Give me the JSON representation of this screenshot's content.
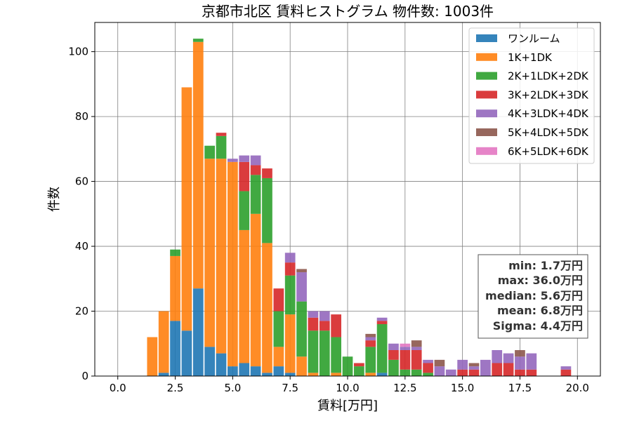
{
  "chart_data": {
    "type": "bar",
    "stacked": true,
    "title": "京都市北区 賃料ヒストグラム 物件数: 1003件",
    "xlabel": "賃料[万円]",
    "ylabel": "件数",
    "xlim": [
      -1.0,
      21.0
    ],
    "ylim": [
      0,
      109
    ],
    "xticks": [
      0.0,
      2.5,
      5.0,
      7.5,
      10.0,
      12.5,
      15.0,
      17.5,
      20.0
    ],
    "xtick_labels": [
      "0.0",
      "2.5",
      "5.0",
      "7.5",
      "10.0",
      "12.5",
      "15.0",
      "17.5",
      "20.0"
    ],
    "yticks": [
      0,
      20,
      40,
      60,
      80,
      100
    ],
    "ytick_labels": [
      "0",
      "20",
      "40",
      "60",
      "80",
      "100"
    ],
    "grid": true,
    "legend_position": "top-right",
    "bin_width": 0.5,
    "x": [
      1.5,
      2.0,
      2.5,
      3.0,
      3.5,
      4.0,
      4.5,
      5.0,
      5.5,
      6.0,
      6.5,
      7.0,
      7.5,
      8.0,
      8.5,
      9.0,
      9.5,
      10.0,
      10.5,
      11.0,
      11.5,
      12.0,
      12.5,
      13.0,
      13.5,
      14.0,
      14.5,
      15.0,
      15.5,
      16.0,
      16.5,
      17.0,
      17.5,
      18.0,
      19.5
    ],
    "series": [
      {
        "name": "ワンルーム",
        "color": "#1f77b4",
        "values": [
          0,
          1,
          17,
          14,
          27,
          9,
          7,
          3,
          4,
          3,
          1,
          3,
          1,
          0,
          0,
          0,
          0,
          0,
          0,
          0,
          1,
          0,
          0,
          0,
          0,
          0,
          0,
          0,
          0,
          0,
          0,
          0,
          0,
          0,
          0
        ]
      },
      {
        "name": "1K+1DK",
        "color": "#ff7f0e",
        "values": [
          12,
          19,
          20,
          75,
          76,
          58,
          60,
          63,
          41,
          47,
          40,
          6,
          18,
          6,
          1,
          0,
          1,
          0,
          0,
          1,
          0,
          0,
          0,
          0,
          0,
          0,
          0,
          0,
          0,
          0,
          0,
          0,
          0,
          0,
          0
        ]
      },
      {
        "name": "2K+1LDK+2DK",
        "color": "#2ca02c",
        "values": [
          0,
          0,
          2,
          0,
          1,
          4,
          7,
          0,
          12,
          12,
          20,
          11,
          12,
          17,
          13,
          14,
          11,
          6,
          3,
          8,
          15,
          5,
          2,
          2,
          1,
          0,
          0,
          0,
          0,
          0,
          0,
          0,
          0,
          0,
          0
        ]
      },
      {
        "name": "3K+2LDK+3DK",
        "color": "#d62728",
        "values": [
          0,
          0,
          0,
          0,
          0,
          0,
          1,
          0,
          9,
          3,
          3,
          7,
          4,
          0,
          4,
          3,
          7,
          0,
          1,
          2,
          1,
          3,
          6,
          6,
          3,
          0,
          0,
          2,
          2,
          0,
          4,
          4,
          2,
          2,
          2
        ]
      },
      {
        "name": "4K+3LDK+4DK",
        "color": "#9467bd",
        "values": [
          0,
          0,
          0,
          0,
          0,
          0,
          0,
          1,
          2,
          3,
          0,
          0,
          3,
          9,
          2,
          3,
          0,
          0,
          0,
          1,
          1,
          2,
          1,
          1,
          1,
          3,
          2,
          3,
          1,
          5,
          4,
          3,
          4,
          5,
          1
        ]
      },
      {
        "name": "5K+4LDK+5DK",
        "color": "#8c564b",
        "values": [
          0,
          0,
          0,
          0,
          0,
          0,
          0,
          0,
          0,
          0,
          0,
          0,
          0,
          1,
          0,
          0,
          0,
          0,
          0,
          1,
          0,
          0,
          0,
          2,
          0,
          2,
          0,
          0,
          1,
          0,
          0,
          0,
          2,
          0,
          0
        ]
      },
      {
        "name": "6K+5LDK+6DK",
        "color": "#e377c2",
        "values": [
          0,
          0,
          0,
          0,
          0,
          0,
          0,
          0,
          0,
          0,
          0,
          0,
          0,
          0,
          0,
          0,
          0,
          0,
          0,
          0,
          0,
          0,
          1,
          0,
          0,
          0,
          0,
          0,
          0,
          0,
          0,
          0,
          0,
          0,
          0
        ]
      }
    ],
    "stats": {
      "min": "min: 1.7万円",
      "max": "max: 36.0万円",
      "median": "median: 5.6万円",
      "mean": "mean: 6.8万円",
      "sigma": "Sigma: 4.4万円"
    }
  }
}
